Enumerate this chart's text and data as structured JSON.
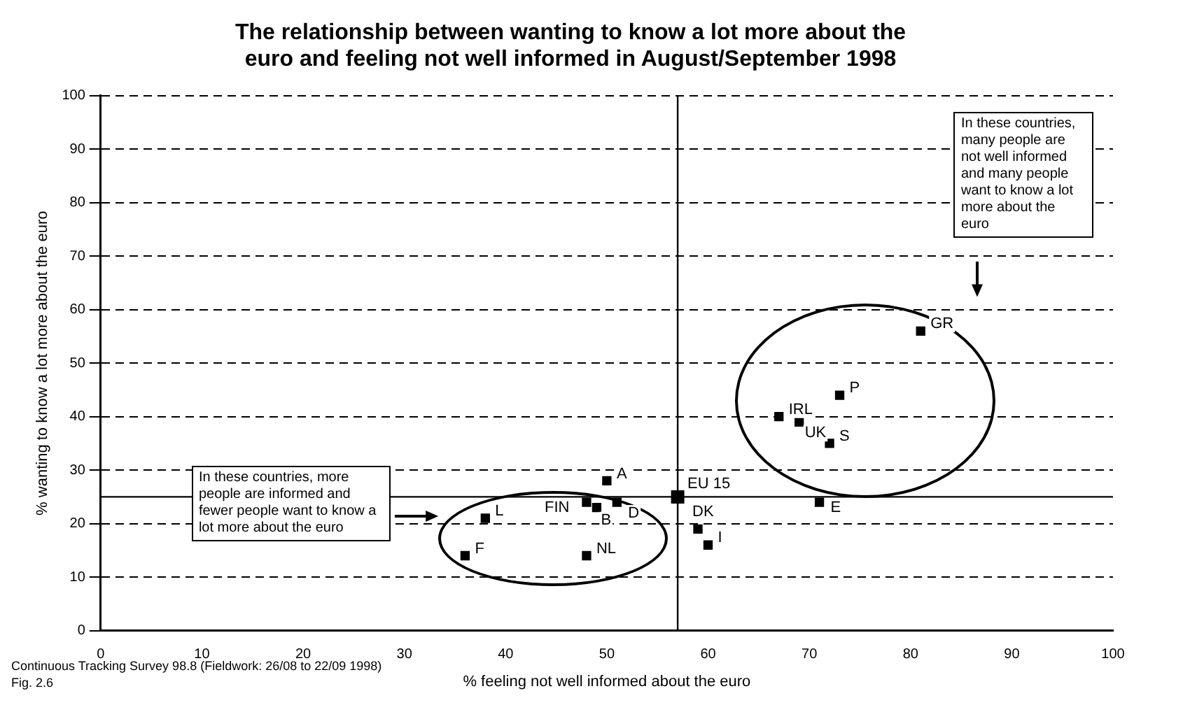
{
  "chart_data": {
    "type": "scatter",
    "title": "The relationship between wanting to know a lot more about the\neuro and feeling not well informed in August/September 1998",
    "xlabel": "% feeling not well informed about the euro",
    "ylabel": "% wanting to know a lot more about the euro",
    "xlim": [
      0,
      100
    ],
    "xticks": [
      0,
      10,
      20,
      30,
      40,
      50,
      60,
      70,
      80,
      90,
      100
    ],
    "ylim": [
      0,
      100
    ],
    "yticks": [
      0,
      10,
      20,
      30,
      40,
      50,
      60,
      70,
      80,
      90,
      100
    ],
    "grid": "y",
    "legend": false,
    "marker": "square",
    "ref_lines": [
      {
        "axis": "x",
        "value": 57,
        "color": "#000000"
      },
      {
        "axis": "y",
        "value": 25,
        "color": "#000000"
      }
    ],
    "annotations": [
      "In these countries,  more people are informed and fewer people want to know a lot more about the euro",
      "In these countries, many people are not well informed and many people want to know a lot more about the euro",
      "Continuous Tracking Survey 98.8 (Fieldwork: 26/08 to 22/09 1998)",
      "Fig. 2.6"
    ],
    "series": [
      {
        "name": "F",
        "color": "#000000",
        "x": [
          36
        ],
        "values": [
          14
        ]
      },
      {
        "name": "L",
        "color": "#000000",
        "x": [
          38
        ],
        "values": [
          21
        ]
      },
      {
        "name": "NL",
        "color": "#000000",
        "x": [
          48
        ],
        "values": [
          14
        ]
      },
      {
        "name": "FIN",
        "color": "#000000",
        "x": [
          48
        ],
        "values": [
          24
        ]
      },
      {
        "name": "B",
        "color": "#000000",
        "x": [
          49
        ],
        "values": [
          23
        ]
      },
      {
        "name": "D",
        "color": "#000000",
        "x": [
          51
        ],
        "values": [
          24
        ]
      },
      {
        "name": "A",
        "color": "#000000",
        "x": [
          50
        ],
        "values": [
          28
        ]
      },
      {
        "name": "EU 15",
        "color": "#000000",
        "x": [
          57
        ],
        "values": [
          25
        ]
      },
      {
        "name": "DK",
        "color": "#000000",
        "x": [
          59
        ],
        "values": [
          19
        ]
      },
      {
        "name": "I",
        "color": "#000000",
        "x": [
          60
        ],
        "values": [
          16
        ]
      },
      {
        "name": "E",
        "color": "#000000",
        "x": [
          71
        ],
        "values": [
          24
        ]
      },
      {
        "name": "GR",
        "color": "#000000",
        "x": [
          81
        ],
        "values": [
          56
        ]
      },
      {
        "name": "P",
        "color": "#000000",
        "x": [
          73
        ],
        "values": [
          44
        ]
      },
      {
        "name": "IRL",
        "color": "#000000",
        "x": [
          67
        ],
        "values": [
          40
        ]
      },
      {
        "name": "UK",
        "color": "#000000",
        "x": [
          69
        ],
        "values": [
          39
        ]
      },
      {
        "name": "S",
        "color": "#000000",
        "x": [
          72
        ],
        "values": [
          35
        ]
      }
    ]
  }
}
